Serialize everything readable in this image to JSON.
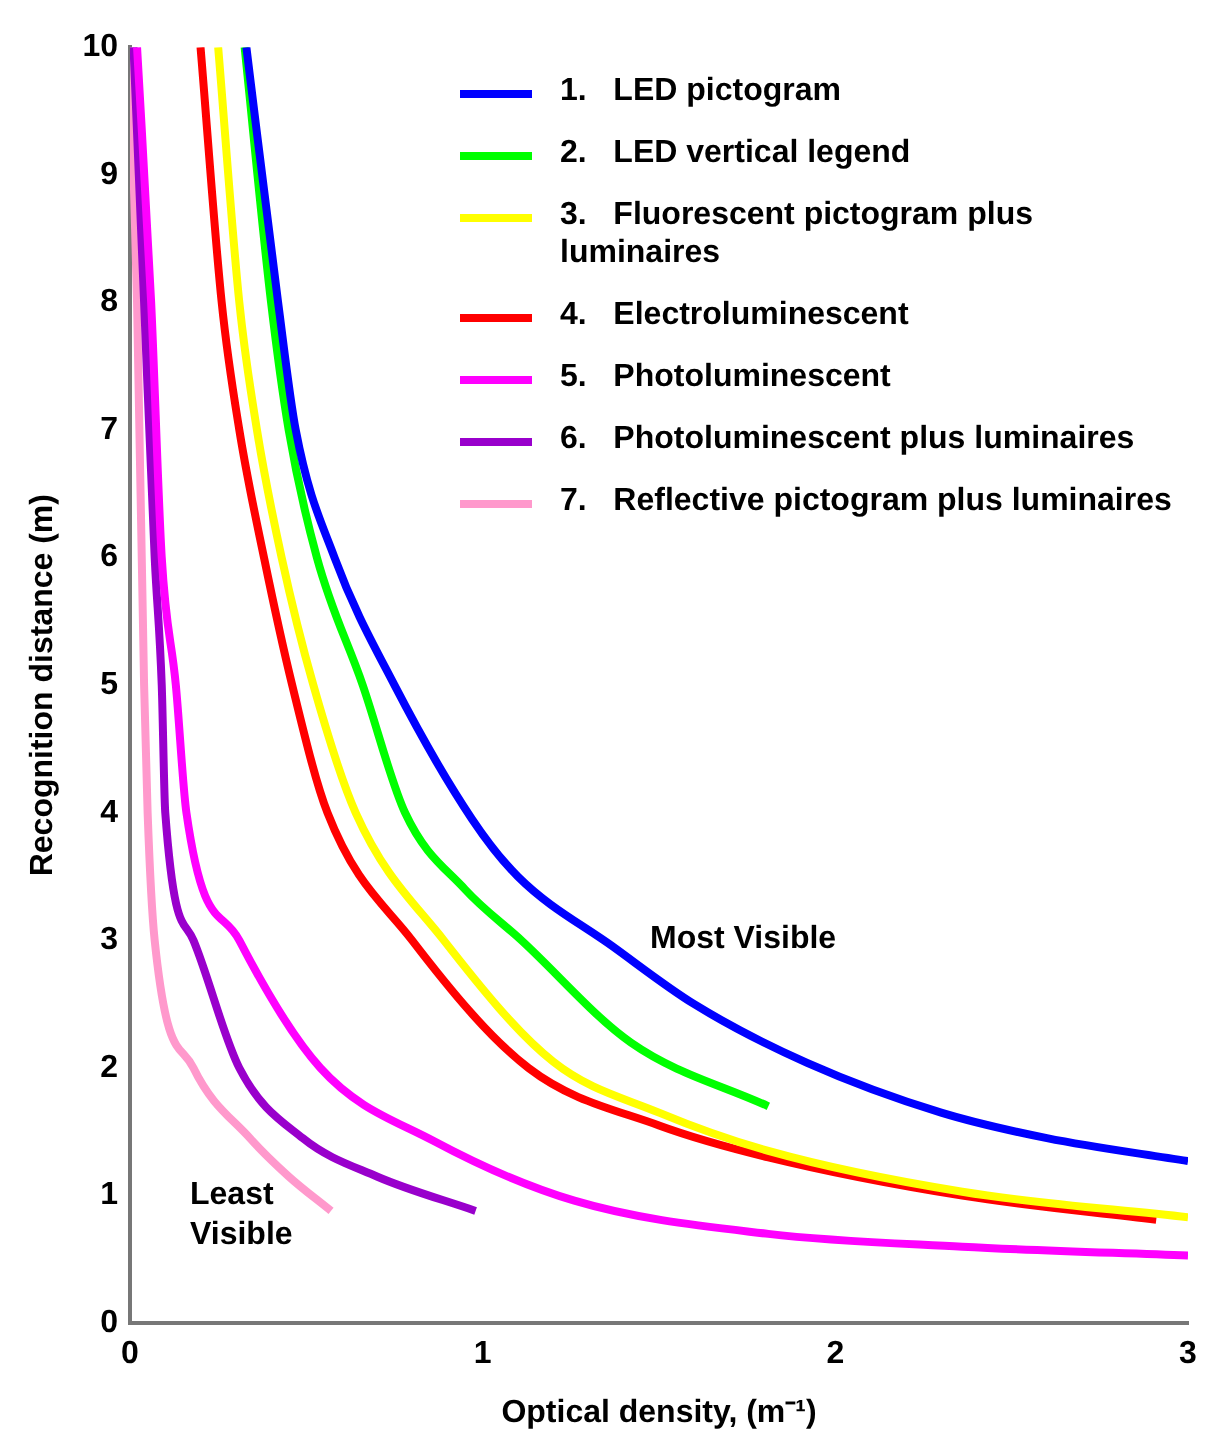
{
  "chart_data": {
    "type": "line",
    "xlabel": "Optical density, (m⁻¹)",
    "ylabel": "Recognition distance (m)",
    "xlim": [
      0,
      3
    ],
    "xticks": [
      0,
      1,
      2,
      3
    ],
    "ylim": [
      0,
      10
    ],
    "yticks": [
      0,
      1,
      2,
      3,
      4,
      5,
      6,
      7,
      8,
      9,
      10
    ],
    "grid": false,
    "legend": "top right",
    "annotations": [
      "Most Visible",
      "Least\nVisible"
    ],
    "series": [
      {
        "name": "1.   LED pictogram",
        "color": "#0000ff",
        "x": [
          0.33,
          0.42,
          0.47,
          0.58,
          0.75,
          0.97,
          1.1,
          1.37,
          1.6,
          1.92,
          2.3,
          2.6,
          3.0
        ],
        "values": [
          10,
          8,
          7,
          6,
          5,
          3.95,
          3.5,
          2.95,
          2.5,
          2.04,
          1.65,
          1.45,
          1.27
        ]
      },
      {
        "name": "2.   LED vertical legend",
        "color": "#00ff00",
        "x": [
          0.325,
          0.4,
          0.45,
          0.53,
          0.66,
          0.78,
          0.95,
          1.11,
          1.42,
          1.81
        ],
        "values": [
          10,
          8,
          7,
          6,
          5,
          4,
          3.4,
          3,
          2.2,
          1.7
        ]
      },
      {
        "name": "3.   Fluorescent pictogram plus luminaires",
        "color": "#ffff00",
        "x": [
          0.25,
          0.31,
          0.36,
          0.43,
          0.52,
          0.64,
          0.89,
          1.2,
          1.5,
          1.81,
          2.36,
          3.0
        ],
        "values": [
          10,
          8,
          7,
          6,
          5,
          4,
          3,
          2.05,
          1.65,
          1.35,
          1.03,
          0.83
        ]
      },
      {
        "name": "4.   Electroluminescent",
        "color": "#ff0000",
        "x": [
          0.2,
          0.26,
          0.31,
          0.38,
          0.46,
          0.56,
          0.8,
          1.13,
          1.5,
          1.81,
          2.36,
          2.91
        ],
        "values": [
          10,
          8,
          7,
          6,
          5,
          4,
          3,
          2,
          1.55,
          1.3,
          1.0,
          0.81
        ]
      },
      {
        "name": "5.   Photoluminescent",
        "color": "#ff00ff",
        "x": [
          0.02,
          0.06,
          0.09,
          0.13,
          0.16,
          0.31,
          0.54,
          0.86,
          1.26,
          1.81,
          2.36,
          3.0
        ],
        "values": [
          10,
          8,
          6,
          5,
          4,
          3,
          2,
          1.43,
          0.96,
          0.7,
          0.6,
          0.53
        ]
      },
      {
        "name": "6.   Photoluminescent plus luminaires",
        "color": "#9900cc",
        "x": [
          0.01,
          0.04,
          0.07,
          0.09,
          0.1,
          0.18,
          0.31,
          0.49,
          0.7,
          0.98
        ],
        "values": [
          10,
          8,
          6,
          5,
          4,
          3,
          2,
          1.45,
          1.15,
          0.88
        ]
      },
      {
        "name": "7.   Reflective pictogram plus luminaires",
        "color": "#ff99cc",
        "x": [
          0,
          0.02,
          0.04,
          0.05,
          0.07,
          0.18,
          0.34,
          0.45,
          0.57
        ],
        "values": [
          10,
          8,
          5,
          4,
          3,
          2,
          1.45,
          1.15,
          0.88
        ]
      }
    ]
  }
}
